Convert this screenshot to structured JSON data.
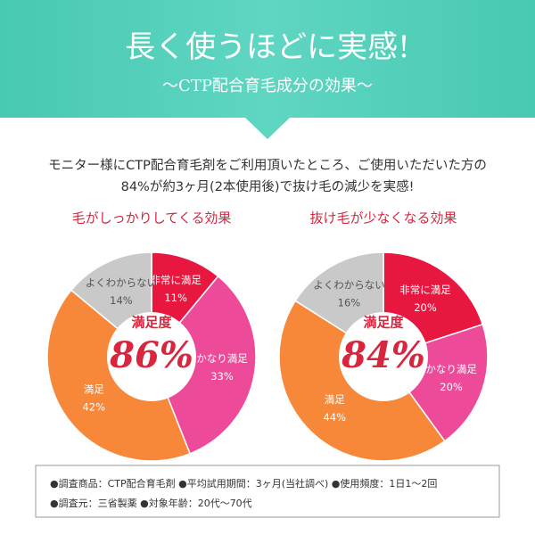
{
  "header": {
    "title": "長く使うほどに実感!",
    "subtitle": "～CTP配合育毛成分の効果～"
  },
  "intro": [
    "モニター様にCTP配合育毛剤をご利用頂いたところ、ご使用いただいた方の",
    "84%が約3ヶ月(2本使用後)で抜け毛の減少を実感!"
  ],
  "chart_data": [
    {
      "type": "pie",
      "title": "毛がしっかりしてくる効果",
      "categories": [
        "非常に満足",
        "かなり満足",
        "満足",
        "よくわからない"
      ],
      "values": [
        11,
        33,
        42,
        14
      ],
      "value_labels": [
        "11%",
        "33%",
        "42%",
        "14%"
      ],
      "colors": [
        "#e8173f",
        "#ee4a9a",
        "#f7883a",
        "#c9c9c9"
      ],
      "center_label": "満足度",
      "center_value": "86%"
    },
    {
      "type": "pie",
      "title": "抜け毛が少なくなる効果",
      "categories": [
        "非常に満足",
        "かなり満足",
        "満足",
        "よくわからない"
      ],
      "values": [
        20,
        20,
        44,
        16
      ],
      "value_labels": [
        "20%",
        "20%",
        "44%",
        "16%"
      ],
      "colors": [
        "#e8173f",
        "#ee4a9a",
        "#f7883a",
        "#c9c9c9"
      ],
      "center_label": "満足度",
      "center_value": "84%"
    }
  ],
  "footnote": [
    "●調査商品：CTP配合育毛剤 ●平均試用期間：3ヶ月(当社調べ) ●使用頻度：1日1～2回",
    "●調査元：三省製薬 ●対象年齢：20代～70代"
  ]
}
